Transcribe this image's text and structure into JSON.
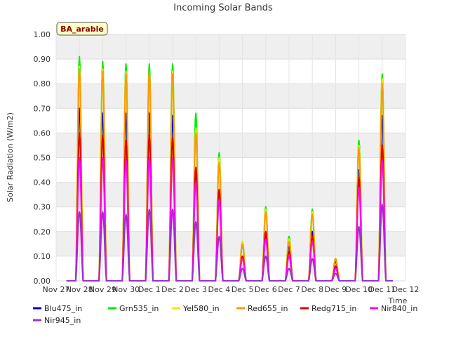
{
  "chart_data": {
    "type": "line",
    "title": "Incoming Solar Bands",
    "ylabel": "Solar Radiation (W/m2)",
    "xlabel": "Time",
    "ylim": [
      0,
      1
    ],
    "yticks": [
      "0.00",
      "0.10",
      "0.20",
      "0.30",
      "0.40",
      "0.50",
      "0.60",
      "0.70",
      "0.80",
      "0.90",
      "1.00"
    ],
    "xticks": [
      "Nov 27",
      "Nov 28",
      "Nov 29",
      "Nov 30",
      "Dec 1",
      "Dec 2",
      "Dec 3",
      "Dec 4",
      "Dec 5",
      "Dec 6",
      "Dec 7",
      "Dec 8",
      "Dec 9",
      "Dec 10",
      "Dec 11",
      "Dec 12"
    ],
    "station_label": "BA_arable",
    "grid": true,
    "legend_position": "bottom",
    "colors": {
      "Blu475_in": "#0000cc",
      "Grn535_in": "#00ee00",
      "Yel580_in": "#eeee00",
      "Red655_in": "#ff9900",
      "Redg715_in": "#dd0000",
      "Nir840_in": "#ff00ff",
      "Nir945_in": "#9933cc"
    },
    "day_labels": [
      "Nov 28",
      "Nov 29",
      "Nov 30",
      "Dec 1",
      "Dec 2",
      "Dec 3",
      "Dec 4",
      "Dec 5",
      "Dec 6",
      "Dec 7",
      "Dec 8",
      "Dec 9",
      "Dec 10",
      "Dec 11"
    ],
    "series": [
      {
        "name": "Blu475_in",
        "daily_peaks": [
          0.7,
          0.68,
          0.68,
          0.68,
          0.67,
          0.45,
          0.37,
          0.15,
          0.18,
          0.14,
          0.2,
          0.08,
          0.45,
          0.67
        ]
      },
      {
        "name": "Grn535_in",
        "daily_peaks": [
          0.91,
          0.89,
          0.88,
          0.88,
          0.88,
          0.68,
          0.52,
          0.16,
          0.3,
          0.18,
          0.29,
          0.09,
          0.57,
          0.84
        ]
      },
      {
        "name": "Yel580_in",
        "daily_peaks": [
          0.87,
          0.86,
          0.85,
          0.85,
          0.85,
          0.62,
          0.5,
          0.16,
          0.29,
          0.17,
          0.28,
          0.09,
          0.55,
          0.82
        ]
      },
      {
        "name": "Red655_in",
        "daily_peaks": [
          0.86,
          0.85,
          0.84,
          0.85,
          0.84,
          0.6,
          0.48,
          0.15,
          0.28,
          0.16,
          0.27,
          0.09,
          0.54,
          0.8
        ]
      },
      {
        "name": "Redg715_in",
        "daily_peaks": [
          0.6,
          0.59,
          0.57,
          0.59,
          0.58,
          0.46,
          0.37,
          0.1,
          0.2,
          0.12,
          0.18,
          0.06,
          0.42,
          0.55
        ]
      },
      {
        "name": "Nir840_in",
        "daily_peaks": [
          0.5,
          0.5,
          0.49,
          0.5,
          0.5,
          0.4,
          0.33,
          0.09,
          0.17,
          0.1,
          0.16,
          0.05,
          0.38,
          0.49
        ]
      },
      {
        "name": "Nir945_in",
        "daily_peaks": [
          0.28,
          0.28,
          0.27,
          0.29,
          0.29,
          0.24,
          0.18,
          0.05,
          0.1,
          0.05,
          0.09,
          0.03,
          0.22,
          0.31
        ]
      }
    ]
  }
}
